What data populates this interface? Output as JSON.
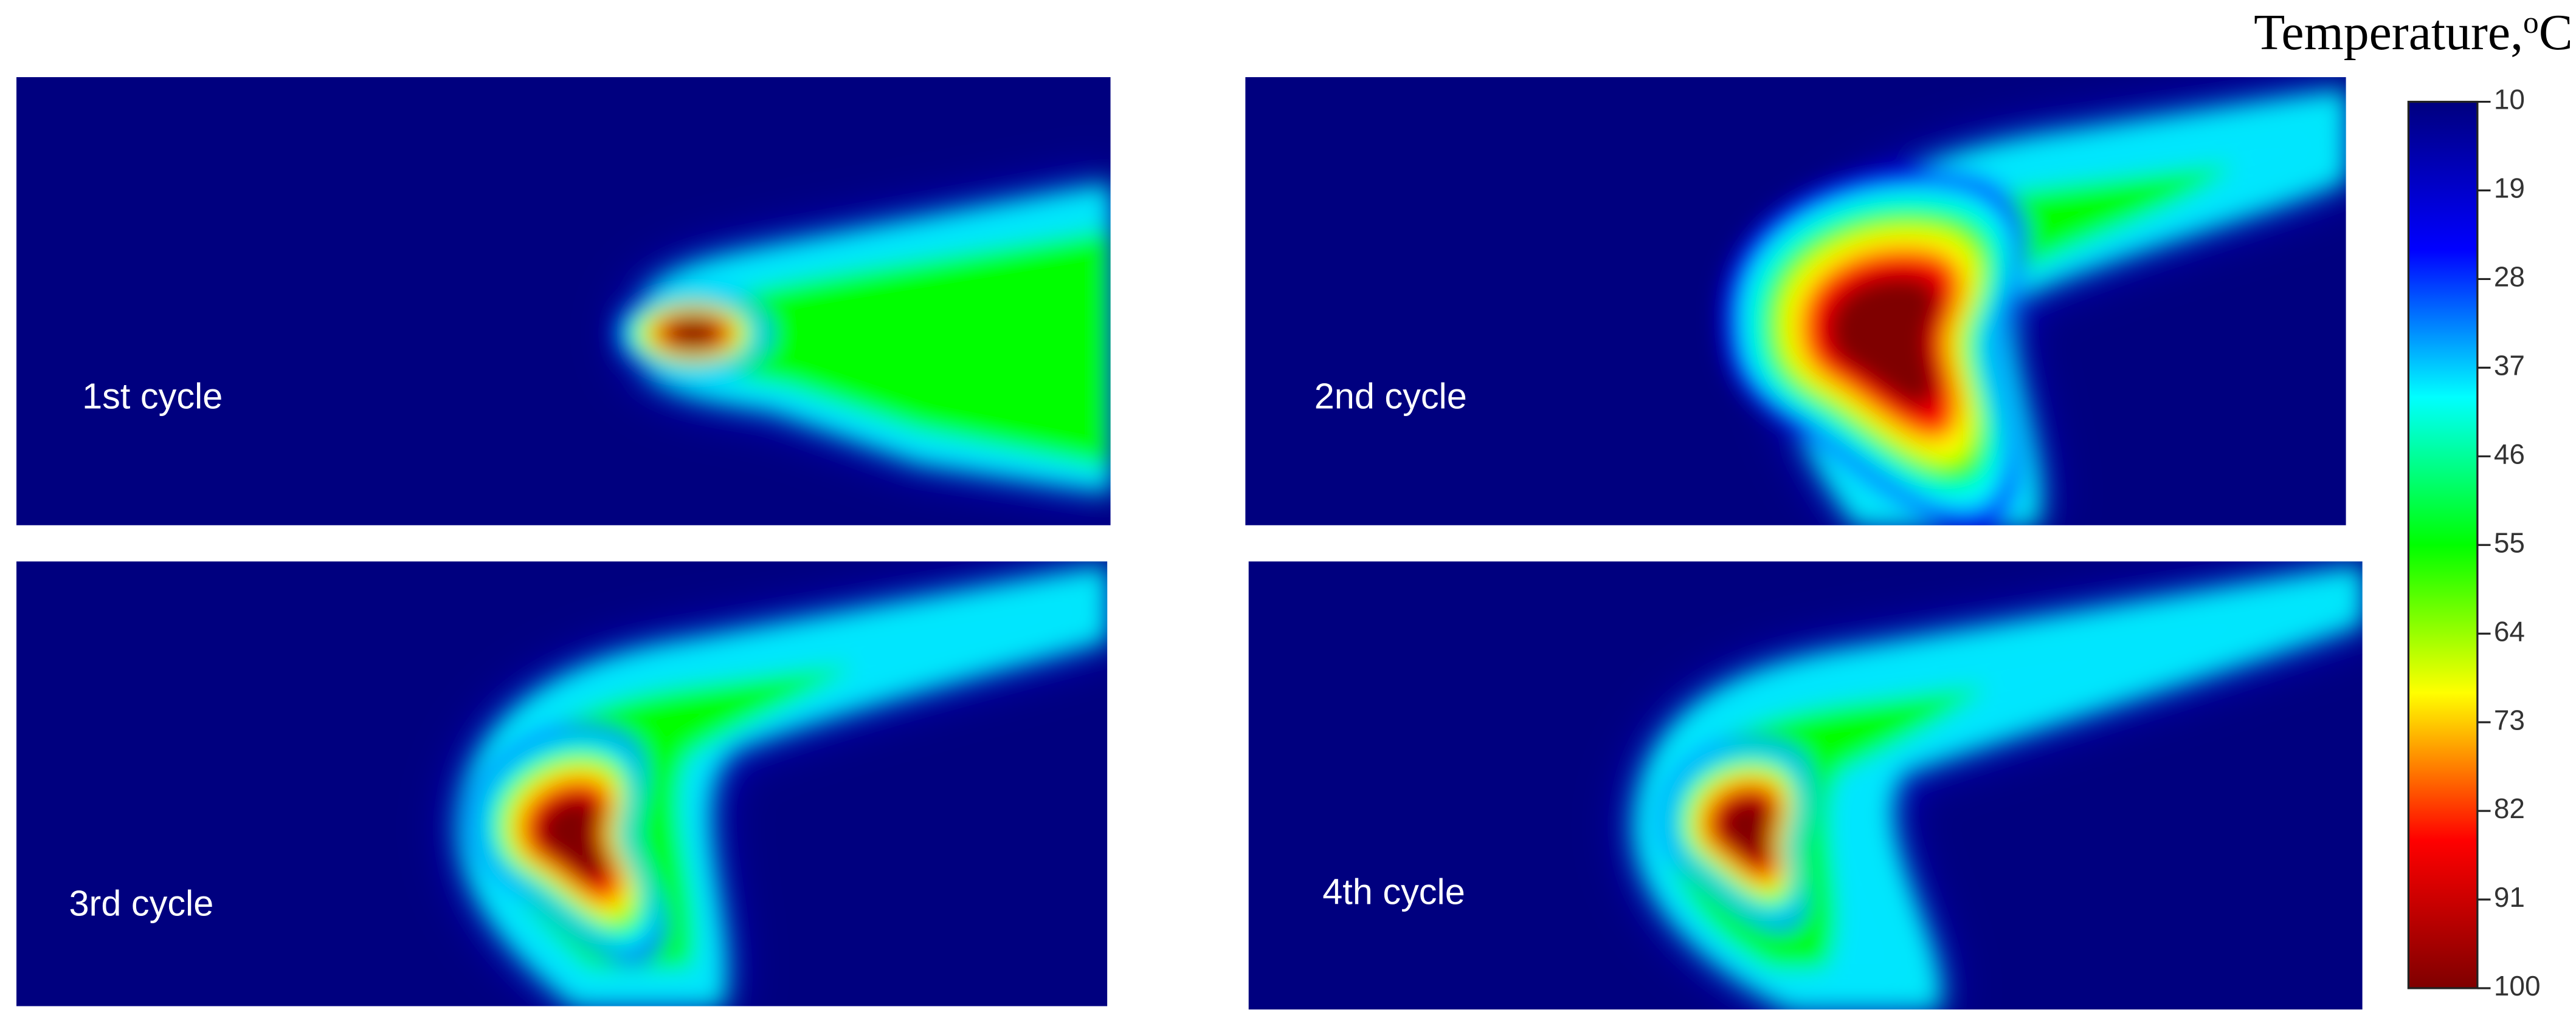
{
  "chart_data": {
    "type": "heatmap",
    "panels": [
      {
        "label": "1st cycle"
      },
      {
        "label": "2nd cycle"
      },
      {
        "label": "3rd cycle"
      },
      {
        "label": "4th cycle"
      }
    ],
    "colormap": [
      "#00007f",
      "#0000ff",
      "#00ffff",
      "#00ff00",
      "#ffff00",
      "#ff0000",
      "#7f0000"
    ],
    "colorbar": {
      "label": {
        "text": "Temperature,",
        "superscript": "o",
        "unit": "C"
      },
      "clim": [
        10,
        100
      ],
      "ticks": [
        10,
        19,
        28,
        37,
        46,
        55,
        64,
        73,
        82,
        91,
        100
      ],
      "reversed": true
    }
  }
}
